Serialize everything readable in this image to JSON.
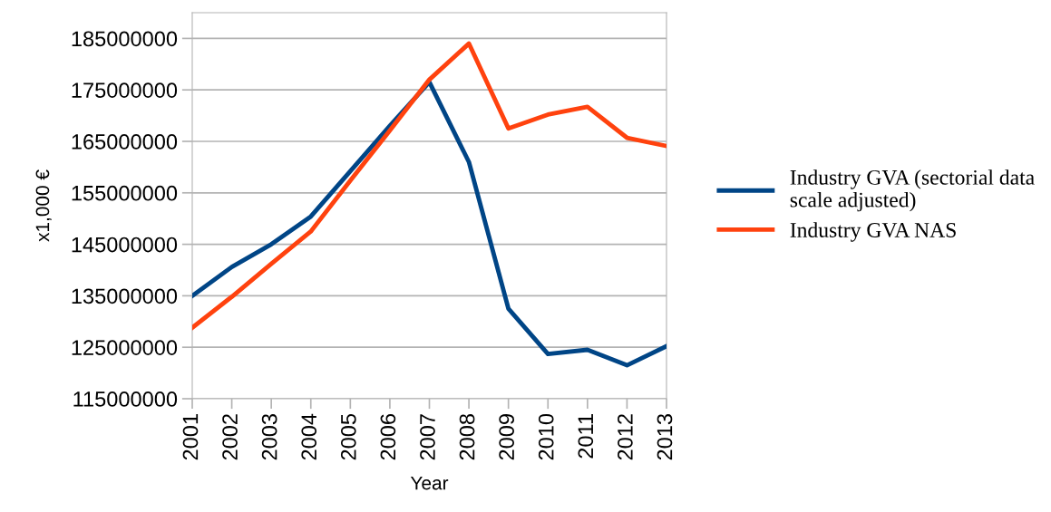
{
  "chart_data": {
    "type": "line",
    "xlabel": "Year",
    "ylabel": "x1,000 €",
    "categories": [
      "2001",
      "2002",
      "2003",
      "2004",
      "2005",
      "2006",
      "2007",
      "2008",
      "2009",
      "2010",
      "2011",
      "2012",
      "2013"
    ],
    "series": [
      {
        "name": "Industry GVA (sectorial data\nscale adjusted)",
        "color": "#004586",
        "values": [
          135000000,
          140600000,
          145000000,
          150400000,
          159200000,
          168000000,
          176500000,
          161000000,
          132500000,
          123700000,
          124500000,
          121500000,
          125200000
        ]
      },
      {
        "name": "Industry GVA NAS",
        "color": "#ff420e",
        "values": [
          128800000,
          134800000,
          141200000,
          147500000,
          157400000,
          167100000,
          177000000,
          184000000,
          167500000,
          170200000,
          171700000,
          165700000,
          164100000
        ]
      }
    ],
    "ylim": [
      115000000,
      190000000
    ],
    "yticks": [
      115000000,
      125000000,
      135000000,
      145000000,
      155000000,
      165000000,
      175000000,
      185000000
    ],
    "grid": "y",
    "legend": "right",
    "marker": "none",
    "line_style": "solid"
  }
}
